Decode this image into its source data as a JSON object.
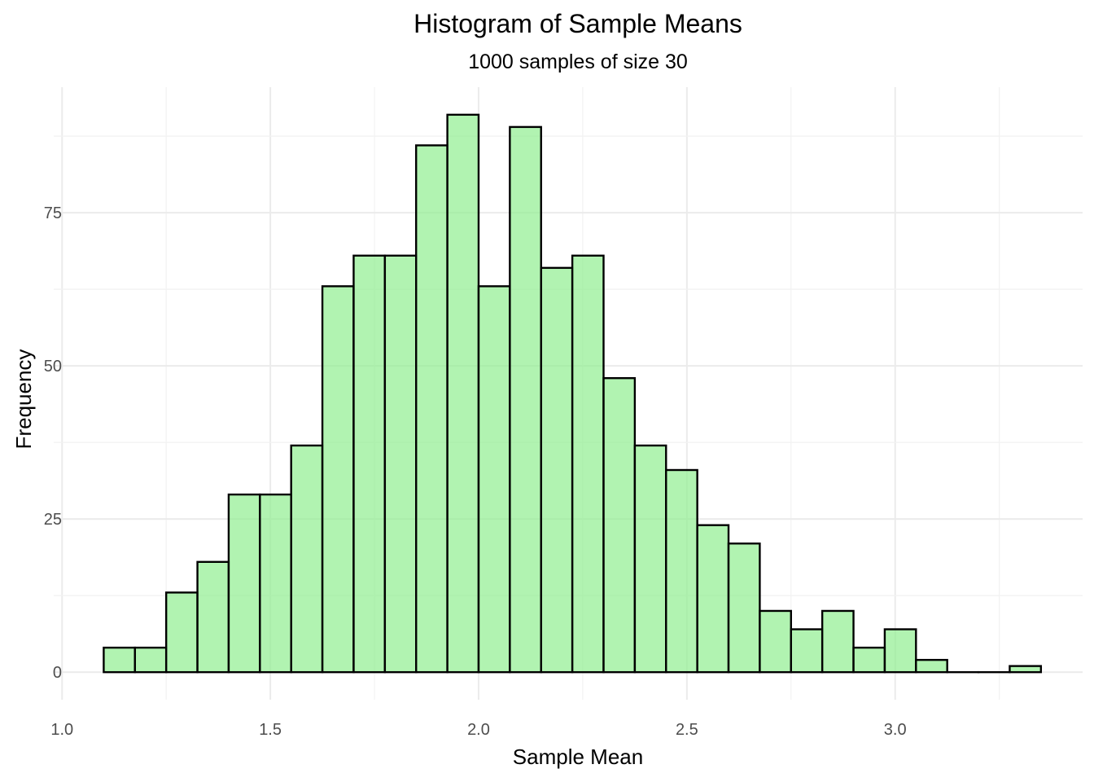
{
  "chart_data": {
    "type": "bar",
    "title": "Histogram of Sample Means",
    "subtitle": "1000 samples of size 30",
    "xlabel": "Sample Mean",
    "ylabel": "Frequency",
    "bin_width": 0.075,
    "bin_starts": [
      1.1,
      1.175,
      1.25,
      1.325,
      1.4,
      1.475,
      1.55,
      1.625,
      1.7,
      1.775,
      1.85,
      1.925,
      2.0,
      2.075,
      2.15,
      2.225,
      2.3,
      2.375,
      2.45,
      2.525,
      2.6,
      2.675,
      2.75,
      2.825,
      2.9,
      2.975,
      3.05,
      3.125,
      3.2,
      3.275
    ],
    "values": [
      4,
      4,
      13,
      18,
      29,
      29,
      37,
      63,
      68,
      68,
      86,
      91,
      63,
      89,
      66,
      68,
      48,
      37,
      33,
      24,
      21,
      10,
      7,
      10,
      4,
      7,
      2,
      0,
      0,
      1
    ],
    "xlim": [
      0.98,
      3.45
    ],
    "ylim": [
      -4.5,
      95.5
    ],
    "x_ticks": [
      1.0,
      1.5,
      2.0,
      2.5,
      3.0
    ],
    "x_tick_labels": [
      "1.0",
      "1.5",
      "2.0",
      "2.5",
      "3.0"
    ],
    "y_ticks": [
      0,
      25,
      50,
      75
    ],
    "y_tick_labels": [
      "0",
      "25",
      "50",
      "75"
    ],
    "grid": true,
    "legend": "none",
    "colors": {
      "fill": "#90EE90",
      "fill_opacity": 0.7,
      "outline": "#000000",
      "grid": "#ebebeb"
    }
  }
}
